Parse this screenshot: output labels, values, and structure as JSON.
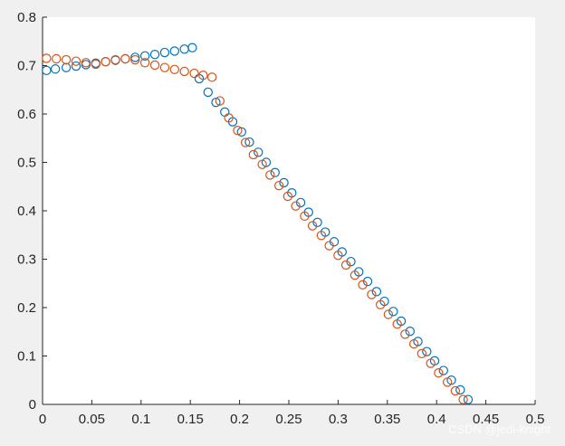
{
  "chart_data": {
    "type": "scatter",
    "title": "",
    "xlabel": "",
    "ylabel": "",
    "xlim": [
      0,
      0.5
    ],
    "ylim": [
      0,
      0.8
    ],
    "x_ticks": [
      0,
      0.05,
      0.1,
      0.15,
      0.2,
      0.25,
      0.3,
      0.35,
      0.4,
      0.45,
      0.5
    ],
    "x_tick_labels": [
      "0",
      "0.05",
      "0.1",
      "0.15",
      "0.2",
      "0.25",
      "0.3",
      "0.35",
      "0.4",
      "0.45",
      "0.5"
    ],
    "y_ticks": [
      0,
      0.1,
      0.2,
      0.3,
      0.4,
      0.5,
      0.6,
      0.7,
      0.8
    ],
    "y_tick_labels": [
      "0",
      "0.1",
      "0.2",
      "0.3",
      "0.4",
      "0.5",
      "0.6",
      "0.7",
      "0.8"
    ],
    "grid": false,
    "marker": "open-circle",
    "series": [
      {
        "color": "#0072BD",
        "points": [
          [
            0.004,
            0.69
          ],
          [
            0.013,
            0.693
          ],
          [
            0.024,
            0.696
          ],
          [
            0.034,
            0.699
          ],
          [
            0.044,
            0.702
          ],
          [
            0.054,
            0.705
          ],
          [
            0.064,
            0.708
          ],
          [
            0.074,
            0.711
          ],
          [
            0.084,
            0.714
          ],
          [
            0.094,
            0.717
          ],
          [
            0.104,
            0.72
          ],
          [
            0.114,
            0.723
          ],
          [
            0.124,
            0.727
          ],
          [
            0.134,
            0.73
          ],
          [
            0.144,
            0.734
          ],
          [
            0.152,
            0.737
          ],
          [
            0.159,
            0.673
          ],
          [
            0.168,
            0.645
          ],
          [
            0.176,
            0.624
          ],
          [
            0.185,
            0.604
          ],
          [
            0.193,
            0.584
          ],
          [
            0.202,
            0.563
          ],
          [
            0.21,
            0.542
          ],
          [
            0.219,
            0.521
          ],
          [
            0.227,
            0.5
          ],
          [
            0.236,
            0.479
          ],
          [
            0.245,
            0.458
          ],
          [
            0.253,
            0.437
          ],
          [
            0.262,
            0.417
          ],
          [
            0.27,
            0.397
          ],
          [
            0.279,
            0.376
          ],
          [
            0.287,
            0.356
          ],
          [
            0.296,
            0.336
          ],
          [
            0.304,
            0.315
          ],
          [
            0.313,
            0.295
          ],
          [
            0.321,
            0.274
          ],
          [
            0.33,
            0.254
          ],
          [
            0.339,
            0.233
          ],
          [
            0.347,
            0.213
          ],
          [
            0.356,
            0.192
          ],
          [
            0.364,
            0.172
          ],
          [
            0.373,
            0.151
          ],
          [
            0.381,
            0.13
          ],
          [
            0.39,
            0.109
          ],
          [
            0.398,
            0.09
          ],
          [
            0.407,
            0.07
          ],
          [
            0.415,
            0.05
          ],
          [
            0.424,
            0.03
          ],
          [
            0.432,
            0.01
          ]
        ]
      },
      {
        "color": "#D95319",
        "points": [
          [
            0.004,
            0.715
          ],
          [
            0.014,
            0.714
          ],
          [
            0.024,
            0.712
          ],
          [
            0.034,
            0.709
          ],
          [
            0.044,
            0.706
          ],
          [
            0.054,
            0.703
          ],
          [
            0.064,
            0.708
          ],
          [
            0.074,
            0.712
          ],
          [
            0.084,
            0.714
          ],
          [
            0.094,
            0.712
          ],
          [
            0.104,
            0.706
          ],
          [
            0.114,
            0.701
          ],
          [
            0.124,
            0.696
          ],
          [
            0.134,
            0.692
          ],
          [
            0.144,
            0.688
          ],
          [
            0.154,
            0.684
          ],
          [
            0.163,
            0.68
          ],
          [
            0.172,
            0.676
          ],
          [
            0.18,
            0.627
          ],
          [
            0.189,
            0.592
          ],
          [
            0.198,
            0.566
          ],
          [
            0.206,
            0.541
          ],
          [
            0.214,
            0.516
          ],
          [
            0.223,
            0.496
          ],
          [
            0.231,
            0.474
          ],
          [
            0.24,
            0.452
          ],
          [
            0.249,
            0.43
          ],
          [
            0.257,
            0.41
          ],
          [
            0.266,
            0.389
          ],
          [
            0.274,
            0.369
          ],
          [
            0.283,
            0.349
          ],
          [
            0.291,
            0.328
          ],
          [
            0.3,
            0.308
          ],
          [
            0.308,
            0.288
          ],
          [
            0.317,
            0.267
          ],
          [
            0.325,
            0.247
          ],
          [
            0.334,
            0.227
          ],
          [
            0.343,
            0.206
          ],
          [
            0.351,
            0.186
          ],
          [
            0.36,
            0.166
          ],
          [
            0.368,
            0.145
          ],
          [
            0.377,
            0.125
          ],
          [
            0.385,
            0.105
          ],
          [
            0.394,
            0.085
          ],
          [
            0.402,
            0.065
          ],
          [
            0.411,
            0.046
          ],
          [
            0.419,
            0.028
          ],
          [
            0.427,
            0.01
          ]
        ]
      }
    ]
  },
  "watermark": "CSDN @jedi-knight"
}
